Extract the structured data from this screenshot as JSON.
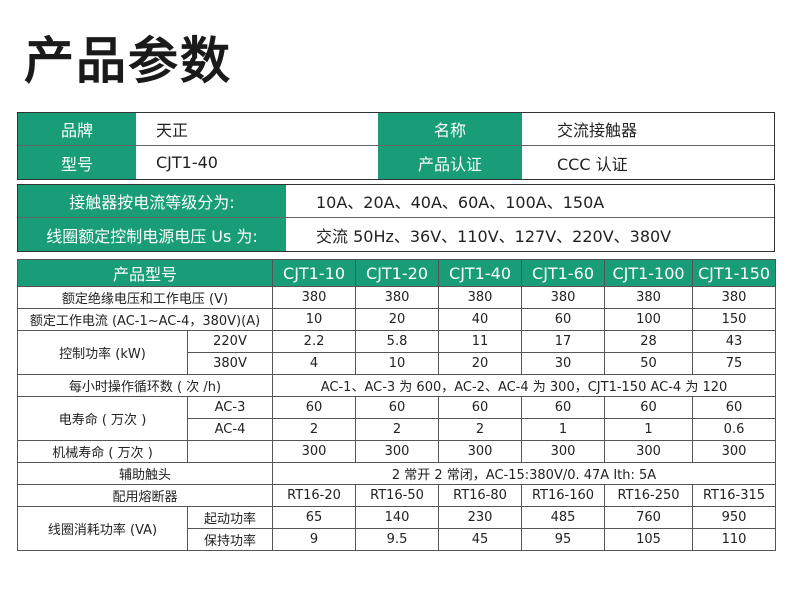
{
  "title": "产品参数",
  "info": {
    "brand_label": "品牌",
    "brand_value": "天正",
    "name_label": "名称",
    "name_value": "交流接触器",
    "model_label": "型号",
    "model_value": "CJT1-40",
    "cert_label": "产品认证",
    "cert_value": "CCC 认证",
    "current_label": "接触器按电流等级分为:",
    "current_value": "10A、20A、40A、60A、100A、150A",
    "voltage_label": "线圈额定控制电源电压 Us 为:",
    "voltage_value": "交流 50Hz、36V、110V、127V、220V、380V"
  },
  "table": {
    "header_label": "产品型号",
    "models": [
      "CJT1-10",
      "CJT1-20",
      "CJT1-40",
      "CJT1-60",
      "CJT1-100",
      "CJT1-150"
    ],
    "rated_insulation": {
      "label": "额定绝缘电压和工作电压 (V)",
      "values": [
        "380",
        "380",
        "380",
        "380",
        "380",
        "380"
      ]
    },
    "rated_current": {
      "label": "额定工作电流 (AC-1~AC-4，380V)(A)",
      "values": [
        "10",
        "20",
        "40",
        "60",
        "100",
        "150"
      ]
    },
    "control_power": {
      "label": "控制功率 (kW)",
      "rows": [
        {
          "sub": "220V",
          "values": [
            "2.2",
            "5.8",
            "11",
            "17",
            "28",
            "43"
          ]
        },
        {
          "sub": "380V",
          "values": [
            "4",
            "10",
            "20",
            "30",
            "50",
            "75"
          ]
        }
      ]
    },
    "cycles": {
      "label": "每小时操作循环数 ( 次 /h)",
      "value": "AC-1、AC-3 为 600，AC-2、AC-4 为 300，CJT1-150 AC-4 为 120"
    },
    "electric_life": {
      "label": "电寿命 ( 万次 )",
      "rows": [
        {
          "sub": "AC-3",
          "values": [
            "60",
            "60",
            "60",
            "60",
            "60",
            "60"
          ]
        },
        {
          "sub": "AC-4",
          "values": [
            "2",
            "2",
            "2",
            "1",
            "1",
            "0.6"
          ]
        }
      ]
    },
    "mechanical_life": {
      "label": "机械寿命 ( 万次 )",
      "values": [
        "300",
        "300",
        "300",
        "300",
        "300",
        "300"
      ]
    },
    "aux_contacts": {
      "label": "辅助触头",
      "value": "2 常开 2 常闭，AC-15:380V/0. 47A  Ith: 5A"
    },
    "fuse": {
      "label": "配用熔断器",
      "values": [
        "RT16-20",
        "RT16-50",
        "RT16-80",
        "RT16-160",
        "RT16-250",
        "RT16-315"
      ]
    },
    "coil_power": {
      "label": "线圈消耗功率 (VA)",
      "rows": [
        {
          "sub": "起动功率",
          "values": [
            "65",
            "140",
            "230",
            "485",
            "760",
            "950"
          ]
        },
        {
          "sub": "保持功率",
          "values": [
            "9",
            "9.5",
            "45",
            "95",
            "105",
            "110"
          ]
        }
      ]
    }
  },
  "colors": {
    "header_green": "#189d78"
  }
}
